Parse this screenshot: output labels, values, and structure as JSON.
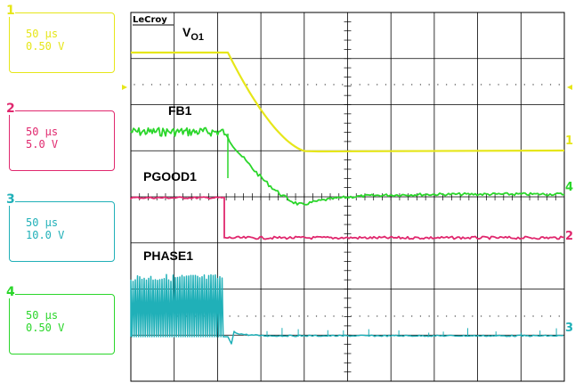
{
  "chart_data": {
    "type": "line",
    "instrument": "LeCroy",
    "grid": true,
    "channels": [
      {
        "id": "1",
        "time_div": "50 µs",
        "volt_div": "0.50 V",
        "color": "#e6e619"
      },
      {
        "id": "2",
        "time_div": "50 µs",
        "volt_div": "5.0 V",
        "color": "#e0286e"
      },
      {
        "id": "3",
        "time_div": "50 µs",
        "volt_div": "10.0 V",
        "color": "#20b0b8"
      },
      {
        "id": "4",
        "time_div": "50 µs",
        "volt_div": "0.50 V",
        "color": "#2ad62a"
      }
    ],
    "traces": [
      {
        "name": "VO1",
        "channel": "1",
        "color": "#e6e619"
      },
      {
        "name": "FB1",
        "channel": "4",
        "color": "#2ad62a"
      },
      {
        "name": "PGOOD1",
        "channel": "2",
        "color": "#e0286e"
      },
      {
        "name": "PHASE1",
        "channel": "3",
        "color": "#20b0b8"
      }
    ],
    "end_markers": [
      "1",
      "4",
      "2",
      "3"
    ]
  }
}
